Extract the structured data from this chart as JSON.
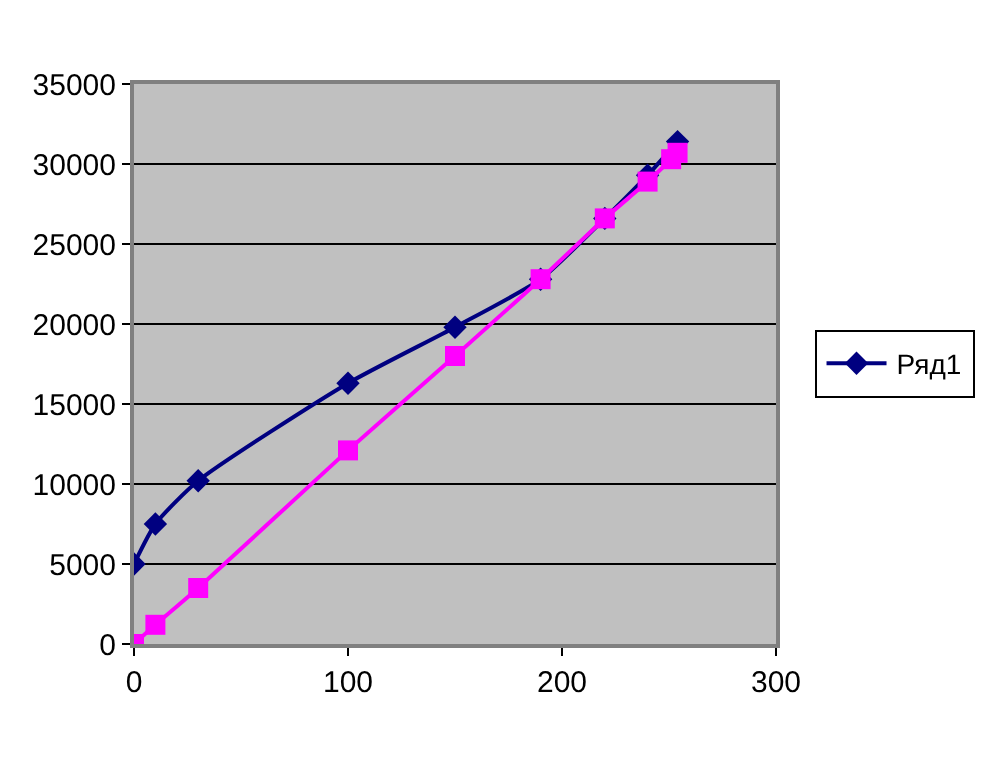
{
  "chart_data": {
    "type": "line",
    "xlim": [
      0,
      300
    ],
    "xticks": [
      0,
      100,
      200,
      300
    ],
    "ylim": [
      0,
      35000
    ],
    "yticks": [
      0,
      5000,
      10000,
      15000,
      20000,
      25000,
      30000,
      35000
    ],
    "grid": "y",
    "legend": "right",
    "series": [
      {
        "name": "Ряд1",
        "color": "#000080",
        "marker": "diamond",
        "x": [
          0,
          10,
          30,
          100,
          150,
          190,
          220,
          240,
          254
        ],
        "values": [
          5000,
          7500,
          10200,
          16300,
          19800,
          22800,
          26600,
          29300,
          31400
        ]
      },
      {
        "color": "#ff00ff",
        "marker": "square",
        "x": [
          0,
          10,
          30,
          100,
          150,
          190,
          220,
          240,
          251,
          254
        ],
        "values": [
          0,
          1200,
          3500,
          12100,
          18000,
          22800,
          26600,
          28900,
          30300,
          30700
        ]
      }
    ]
  }
}
